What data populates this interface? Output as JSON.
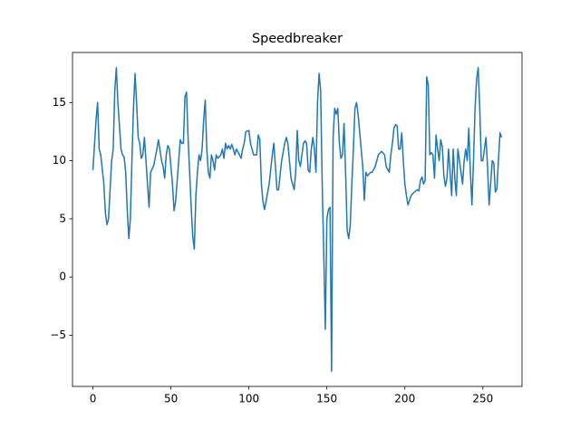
{
  "chart_data": {
    "type": "line",
    "title": "Speedbreaker",
    "x": [
      0,
      2,
      3,
      4,
      5,
      7,
      8,
      9,
      10,
      12,
      13,
      14,
      15,
      16,
      18,
      19,
      20,
      21,
      22,
      23,
      24,
      25,
      26,
      27,
      28,
      29,
      30,
      31,
      32,
      33,
      34,
      35,
      36,
      37,
      38,
      39,
      41,
      42,
      44,
      45,
      46,
      47,
      48,
      49,
      50,
      51,
      52,
      53,
      55,
      56,
      57,
      58,
      59,
      60,
      61,
      62,
      63,
      64,
      65,
      66,
      67,
      68,
      69,
      70,
      71,
      72,
      73,
      74,
      75,
      76,
      77,
      78,
      79,
      80,
      82,
      83,
      84,
      85,
      86,
      87,
      88,
      89,
      90,
      91,
      92,
      94,
      95,
      96,
      97,
      98,
      100,
      101,
      103,
      105,
      106,
      107,
      108,
      109,
      110,
      111,
      113,
      115,
      116,
      117,
      118,
      119,
      121,
      123,
      124,
      125,
      126,
      127,
      128,
      129,
      130,
      131,
      132,
      133,
      134,
      135,
      136,
      137,
      138,
      139,
      140,
      141,
      142,
      143,
      144,
      145,
      146,
      147,
      148,
      149,
      150,
      151,
      152,
      153,
      154,
      155,
      156,
      157,
      158,
      159,
      160,
      161,
      162,
      163,
      164,
      165,
      166,
      167,
      168,
      169,
      170,
      171,
      172,
      173,
      174,
      175,
      176,
      178,
      179,
      181,
      183,
      185,
      187,
      188,
      190,
      191,
      192,
      193,
      194,
      195,
      196,
      197,
      198,
      199,
      200,
      201,
      202,
      204,
      206,
      208,
      209,
      210,
      211,
      212,
      213,
      214,
      215,
      216,
      217,
      218,
      219,
      220,
      221,
      222,
      223,
      224,
      225,
      226,
      227,
      228,
      229,
      230,
      231,
      232,
      233,
      234,
      235,
      236,
      237,
      238,
      239,
      240,
      241,
      242,
      243,
      244,
      245,
      246,
      247,
      248,
      249,
      250,
      251,
      252,
      253,
      254,
      255,
      256,
      257,
      258,
      259,
      260,
      261,
      262
    ],
    "series": [
      {
        "name": "Speedbreaker",
        "color": "#1f77b4",
        "values": [
          9.2,
          13.5,
          15,
          11,
          10.5,
          8,
          5.5,
          4.5,
          5,
          10,
          11,
          16,
          18,
          15,
          11,
          10.5,
          10.3,
          9,
          5.8,
          3.3,
          5,
          10,
          14.5,
          17.5,
          15,
          12,
          11.5,
          10.2,
          10.5,
          12,
          10,
          8,
          6,
          9,
          9.3,
          9.6,
          11,
          11.8,
          10,
          9.5,
          8.5,
          10.5,
          11.3,
          11,
          9.5,
          8,
          5.7,
          6.5,
          10,
          11.8,
          11.5,
          11.5,
          15.5,
          15.9,
          12,
          9,
          6,
          3.5,
          2.4,
          7,
          9,
          10.5,
          10,
          11,
          13.5,
          15.2,
          11,
          9,
          8.5,
          10.5,
          10,
          9.2,
          10.5,
          10.2,
          10.5,
          11,
          10.2,
          11.5,
          11,
          11.3,
          11,
          11.4,
          11,
          10.5,
          11,
          10.5,
          10.2,
          11,
          11.5,
          12.5,
          12.6,
          11.5,
          10.5,
          10.5,
          12.2,
          11.8,
          8,
          6.5,
          5.8,
          6.5,
          8,
          10.5,
          11.5,
          9.5,
          7.5,
          7.5,
          10,
          11.5,
          12,
          11.5,
          10,
          8.5,
          8,
          7.5,
          9,
          12.6,
          10,
          9.5,
          10.5,
          11.5,
          11.7,
          11.5,
          9.2,
          9,
          11,
          12,
          11,
          9,
          15,
          17.5,
          16,
          8,
          2,
          -4.5,
          5,
          5.8,
          6,
          -8.1,
          12,
          14.5,
          14,
          14.5,
          11.5,
          10.2,
          10.5,
          13.2,
          9,
          4,
          3.3,
          4.5,
          8,
          11,
          14.5,
          15,
          14,
          12.5,
          11,
          9.5,
          6.6,
          9,
          8.7,
          9,
          9,
          9.5,
          10.5,
          10.8,
          10.5,
          9.5,
          9,
          10.5,
          11.5,
          12.8,
          13.1,
          13,
          11,
          11,
          12.4,
          10,
          8,
          7,
          6.2,
          7,
          7.3,
          7.5,
          7.4,
          8.3,
          8.6,
          8,
          8.3,
          17.2,
          16.5,
          10.5,
          10.7,
          10.5,
          8.5,
          12.2,
          11,
          10,
          11.8,
          11.2,
          8.7,
          7.8,
          8.5,
          11,
          9,
          7,
          11,
          8.5,
          7,
          11,
          10,
          9,
          8,
          10,
          11,
          10,
          12.8,
          9,
          6.2,
          10,
          14.5,
          17,
          18,
          14.5,
          10,
          10,
          11,
          12,
          9.5,
          6.2,
          8,
          10,
          9.8,
          7.3,
          7.6,
          10,
          12.4,
          12
        ]
      }
    ],
    "xlim": [
      -13.1,
      275.1
    ],
    "ylim": [
      -9.4,
      19.3
    ],
    "xticks": [
      0,
      50,
      100,
      150,
      200,
      250
    ],
    "yticks": [
      {
        "value": -5,
        "label": "−5"
      },
      0,
      5,
      10,
      15
    ]
  }
}
